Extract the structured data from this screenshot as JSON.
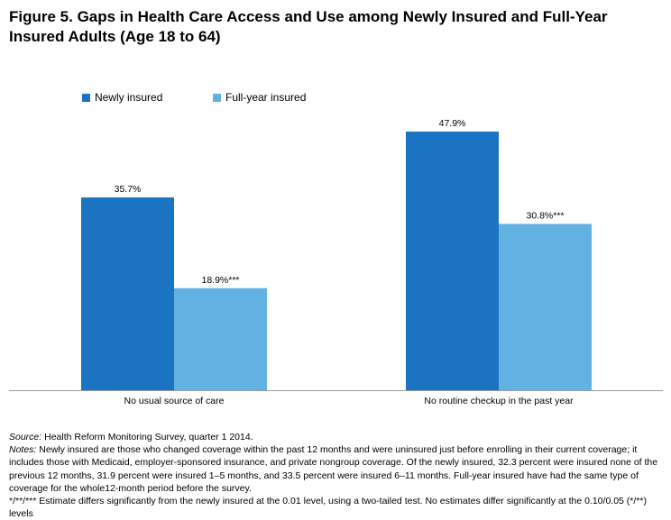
{
  "figure": {
    "title_line1": "Figure 5.  Gaps in Health Care Access and Use among Newly Insured and Full-Year",
    "title_line2": "Insured Adults (Age 18 to 64)"
  },
  "legend": {
    "items": [
      {
        "label": "Newly insured",
        "color": "#1a74c1"
      },
      {
        "label": "Full-year insured",
        "color": "#61b1e3"
      }
    ]
  },
  "chart_data": {
    "type": "bar",
    "categories": [
      "No usual source of care",
      "No routine checkup in the past year"
    ],
    "series": [
      {
        "name": "Newly insured",
        "values": [
          35.7,
          47.9
        ],
        "labels": [
          "35.7%",
          "47.9%"
        ],
        "color": "#1a74c1"
      },
      {
        "name": "Full-year insured",
        "values": [
          18.9,
          30.8
        ],
        "labels": [
          "18.9%***",
          "30.8%***"
        ],
        "color": "#61b1e3"
      }
    ],
    "ylim": [
      0,
      50
    ],
    "grid": false,
    "legend_position": "top-left"
  },
  "footnotes": {
    "source_label": "Source:",
    "source_text": " Health Reform Monitoring Survey, quarter 1 2014.",
    "notes_label": "Notes:",
    "notes_text": " Newly insured are those who changed coverage within the past 12 months and were uninsured just before enrolling in their current coverage; it includes those with Medicaid, employer-sponsored insurance, and private nongroup coverage. Of the newly insured, 32.3 percent were insured none of the previous 12 months, 31.9 percent were insured 1–5 months, and 33.5 percent were insured 6–11 months. Full-year insured have had the same type of coverage for the whole12-month period before the survey.",
    "significance": "*/**/*** Estimate differs significantly from the newly insured at the 0.01 level, using a two-tailed test. No estimates differ significantly at the 0.10/0.05 (*/**) levels"
  }
}
